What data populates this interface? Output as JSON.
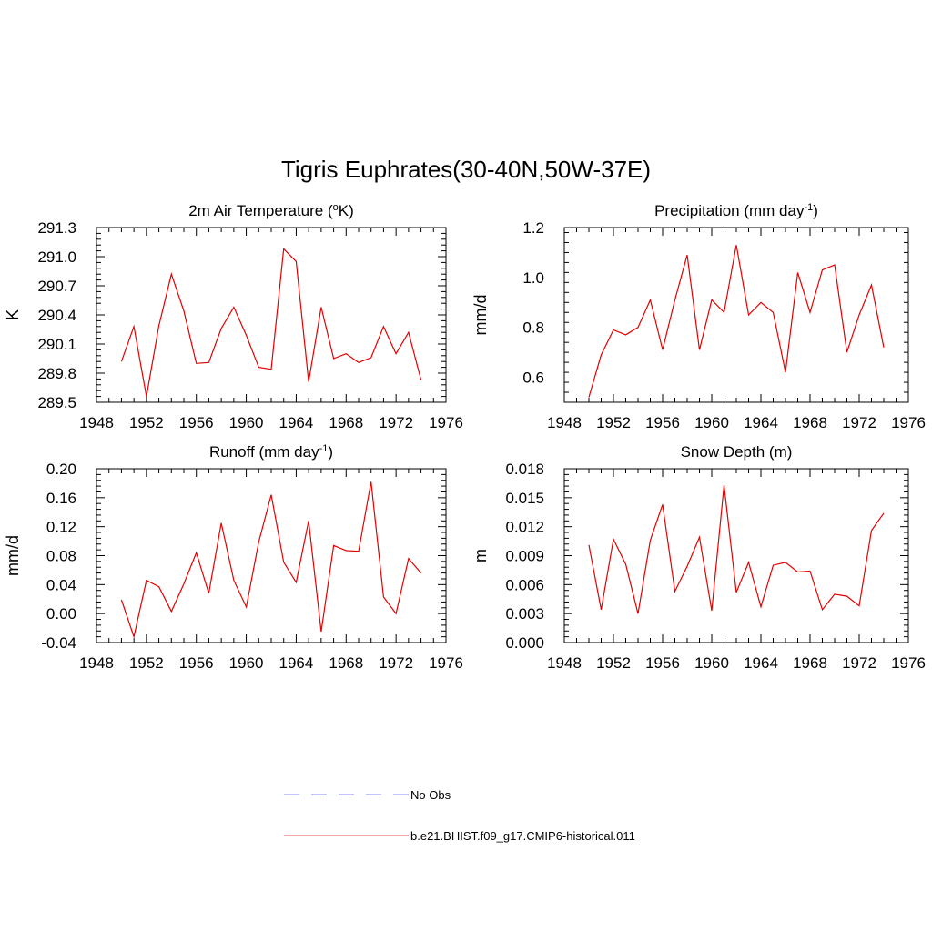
{
  "title": "Tigris Euphrates(30-40N,50W-37E)",
  "chart_data": [
    {
      "type": "line",
      "title_parts": {
        "before": "2m Air Temperature (",
        "sup": "o",
        "after": "K)"
      },
      "ylabel": "K",
      "xlim": [
        1948,
        1976
      ],
      "xticks": [
        "1948",
        "1952",
        "1956",
        "1960",
        "1964",
        "1968",
        "1972",
        "1976"
      ],
      "ylim": [
        289.5,
        291.3
      ],
      "yticks": [
        "289.5",
        "289.8",
        "290.1",
        "290.4",
        "290.7",
        "291.0",
        "291.3"
      ],
      "x": [
        1950,
        1951,
        1952,
        1953,
        1954,
        1955,
        1956,
        1957,
        1958,
        1959,
        1960,
        1961,
        1962,
        1963,
        1964,
        1965,
        1966,
        1967,
        1968,
        1969,
        1970,
        1971,
        1972,
        1973,
        1974
      ],
      "series": [
        {
          "values": [
            289.92,
            290.28,
            289.56,
            290.29,
            290.82,
            290.44,
            289.9,
            289.91,
            290.26,
            290.48,
            290.19,
            289.86,
            289.84,
            291.08,
            290.95,
            289.71,
            290.48,
            289.95,
            290.0,
            289.91,
            289.96,
            290.28,
            290.0,
            290.22,
            289.73
          ]
        }
      ]
    },
    {
      "type": "line",
      "title_parts": {
        "before": "Precipitation (mm day",
        "sup": "-1",
        "after": ")"
      },
      "ylabel": "mm/d",
      "xlim": [
        1948,
        1976
      ],
      "xticks": [
        "1948",
        "1952",
        "1956",
        "1960",
        "1964",
        "1968",
        "1972",
        "1976"
      ],
      "ylim": [
        0.5,
        1.2
      ],
      "yticks": [
        "0.6",
        "0.8",
        "1.0",
        "1.2"
      ],
      "ytick_values": [
        0.6,
        0.8,
        1.0,
        1.2
      ],
      "x": [
        1950,
        1951,
        1952,
        1953,
        1954,
        1955,
        1956,
        1957,
        1958,
        1959,
        1960,
        1961,
        1962,
        1963,
        1964,
        1965,
        1966,
        1967,
        1968,
        1969,
        1970,
        1971,
        1972,
        1973,
        1974
      ],
      "series": [
        {
          "values": [
            0.52,
            0.69,
            0.79,
            0.77,
            0.8,
            0.91,
            0.71,
            0.91,
            1.09,
            0.71,
            0.91,
            0.86,
            1.13,
            0.85,
            0.9,
            0.86,
            0.62,
            1.02,
            0.86,
            1.03,
            1.05,
            0.7,
            0.85,
            0.97,
            0.72
          ]
        }
      ]
    },
    {
      "type": "line",
      "title_parts": {
        "before": "Runoff (mm day",
        "sup": "-1",
        "after": ")"
      },
      "ylabel": "mm/d",
      "xlim": [
        1948,
        1976
      ],
      "xticks": [
        "1948",
        "1952",
        "1956",
        "1960",
        "1964",
        "1968",
        "1972",
        "1976"
      ],
      "ylim": [
        -0.04,
        0.2
      ],
      "yticks": [
        "-0.04",
        "0.00",
        "0.04",
        "0.08",
        "0.12",
        "0.16",
        "0.20"
      ],
      "x": [
        1950,
        1951,
        1952,
        1953,
        1954,
        1955,
        1956,
        1957,
        1958,
        1959,
        1960,
        1961,
        1962,
        1963,
        1964,
        1965,
        1966,
        1967,
        1968,
        1969,
        1970,
        1971,
        1972,
        1973,
        1974
      ],
      "series": [
        {
          "values": [
            0.019,
            -0.032,
            0.046,
            0.037,
            0.003,
            0.041,
            0.084,
            0.028,
            0.125,
            0.046,
            0.009,
            0.099,
            0.164,
            0.071,
            0.043,
            0.128,
            -0.025,
            0.094,
            0.087,
            0.086,
            0.182,
            0.023,
            0.0,
            0.076,
            0.056
          ]
        }
      ]
    },
    {
      "type": "line",
      "title_parts": {
        "before": "Snow Depth (m)",
        "sup": "",
        "after": ""
      },
      "ylabel": "m",
      "xlim": [
        1948,
        1976
      ],
      "xticks": [
        "1948",
        "1952",
        "1956",
        "1960",
        "1964",
        "1968",
        "1972",
        "1976"
      ],
      "ylim": [
        0.0,
        0.018
      ],
      "yticks": [
        "0.000",
        "0.003",
        "0.006",
        "0.009",
        "0.012",
        "0.015",
        "0.018"
      ],
      "x": [
        1950,
        1951,
        1952,
        1953,
        1954,
        1955,
        1956,
        1957,
        1958,
        1959,
        1960,
        1961,
        1962,
        1963,
        1964,
        1965,
        1966,
        1967,
        1968,
        1969,
        1970,
        1971,
        1972,
        1973,
        1974
      ],
      "series": [
        {
          "values": [
            0.0101,
            0.0034,
            0.0107,
            0.0081,
            0.003,
            0.0106,
            0.0143,
            0.0053,
            0.0079,
            0.0109,
            0.0033,
            0.0163,
            0.0052,
            0.0083,
            0.0037,
            0.008,
            0.0083,
            0.0073,
            0.0074,
            0.0034,
            0.005,
            0.0048,
            0.0038,
            0.0116,
            0.0134
          ]
        }
      ]
    }
  ],
  "legend": [
    {
      "label": "No Obs",
      "color": "#9fa0ee",
      "dash": "dashed"
    },
    {
      "label": "b.e21.BHIST.f09_g17.CMIP6-historical.011",
      "color": "#ee6f80",
      "dash": "solid"
    }
  ],
  "colors": {
    "series_line": "#e30000",
    "axis": "#000000"
  }
}
